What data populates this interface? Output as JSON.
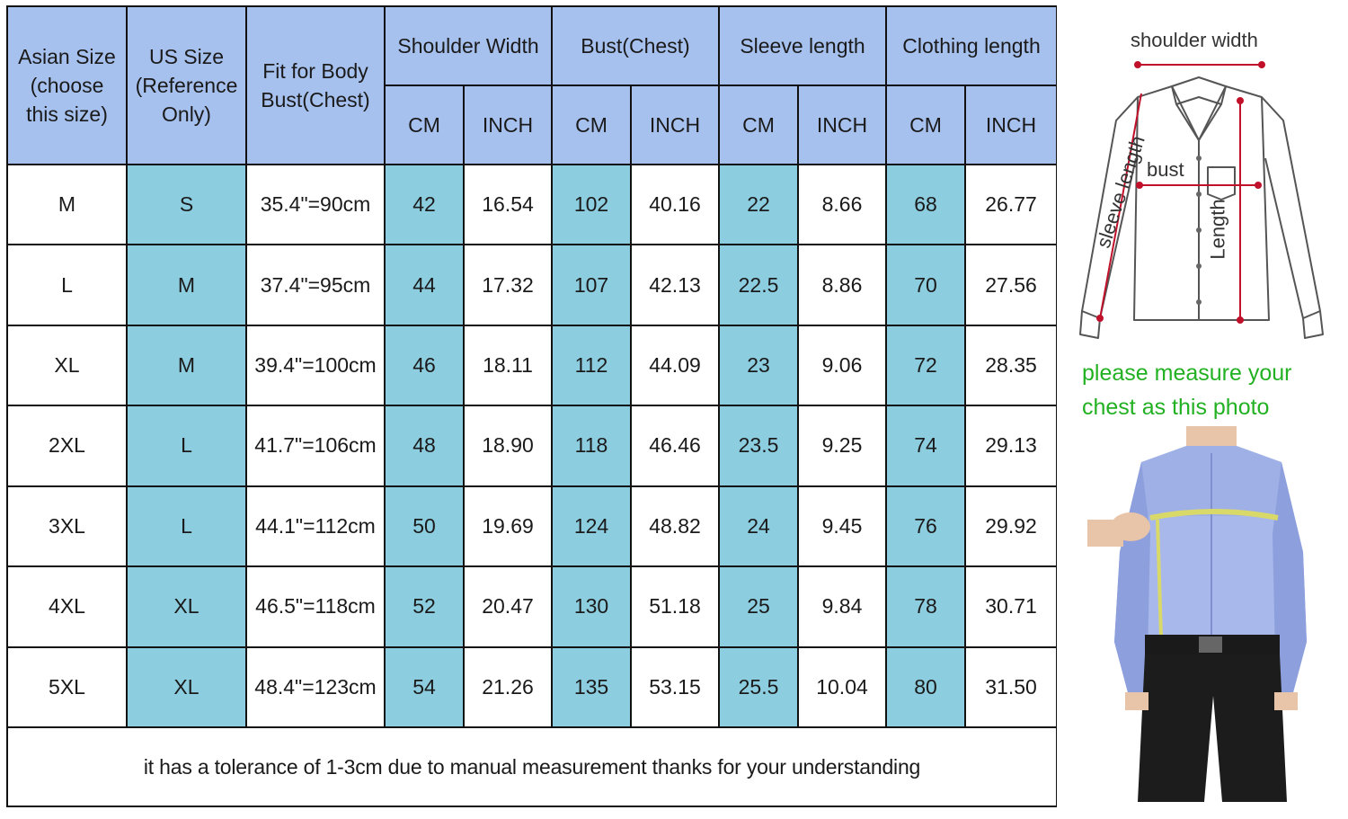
{
  "table": {
    "headers": {
      "asian_size": "Asian Size (choose this size)",
      "us_size": "US Size (Reference Only)",
      "fit_for_body": "Fit for Body Bust(Chest)",
      "shoulder_width": "Shoulder Width",
      "bust": "Bust(Chest)",
      "sleeve_length": "Sleeve length",
      "clothing_length": "Clothing length",
      "cm": "CM",
      "inch": "INCH"
    },
    "rows": [
      {
        "asian": "M",
        "us": "S",
        "fit": "35.4\"=90cm",
        "shoulder_cm": "42",
        "shoulder_in": "16.54",
        "bust_cm": "102",
        "bust_in": "40.16",
        "sleeve_cm": "22",
        "sleeve_in": "8.66",
        "length_cm": "68",
        "length_in": "26.77"
      },
      {
        "asian": "L",
        "us": "M",
        "fit": "37.4\"=95cm",
        "shoulder_cm": "44",
        "shoulder_in": "17.32",
        "bust_cm": "107",
        "bust_in": "42.13",
        "sleeve_cm": "22.5",
        "sleeve_in": "8.86",
        "length_cm": "70",
        "length_in": "27.56"
      },
      {
        "asian": "XL",
        "us": "M",
        "fit": "39.4\"=100cm",
        "shoulder_cm": "46",
        "shoulder_in": "18.11",
        "bust_cm": "112",
        "bust_in": "44.09",
        "sleeve_cm": "23",
        "sleeve_in": "9.06",
        "length_cm": "72",
        "length_in": "28.35"
      },
      {
        "asian": "2XL",
        "us": "L",
        "fit": "41.7\"=106cm",
        "shoulder_cm": "48",
        "shoulder_in": "18.90",
        "bust_cm": "118",
        "bust_in": "46.46",
        "sleeve_cm": "23.5",
        "sleeve_in": "9.25",
        "length_cm": "74",
        "length_in": "29.13"
      },
      {
        "asian": "3XL",
        "us": "L",
        "fit": "44.1\"=112cm",
        "shoulder_cm": "50",
        "shoulder_in": "19.69",
        "bust_cm": "124",
        "bust_in": "48.82",
        "sleeve_cm": "24",
        "sleeve_in": "9.45",
        "length_cm": "76",
        "length_in": "29.92"
      },
      {
        "asian": "4XL",
        "us": "XL",
        "fit": "46.5\"=118cm",
        "shoulder_cm": "52",
        "shoulder_in": "20.47",
        "bust_cm": "130",
        "bust_in": "51.18",
        "sleeve_cm": "25",
        "sleeve_in": "9.84",
        "length_cm": "78",
        "length_in": "30.71"
      },
      {
        "asian": "5XL",
        "us": "XL",
        "fit": "48.4\"=123cm",
        "shoulder_cm": "54",
        "shoulder_in": "21.26",
        "bust_cm": "135",
        "bust_in": "53.15",
        "sleeve_cm": "25.5",
        "sleeve_in": "10.04",
        "length_cm": "80",
        "length_in": "31.50"
      }
    ],
    "footnote": "it has a tolerance of 1-3cm due to manual measurement thanks for your understanding"
  },
  "diagram": {
    "shoulder_width": "shoulder width",
    "sleeve_length": "sleeve length",
    "bust": "bust",
    "length": "Length"
  },
  "measure_note": "please measure your chest as this photo",
  "colors": {
    "header_blue": "#a7c1ef",
    "teal_column": "#8dcde0",
    "note_green": "#22b122",
    "guide_red": "#c0102a"
  }
}
